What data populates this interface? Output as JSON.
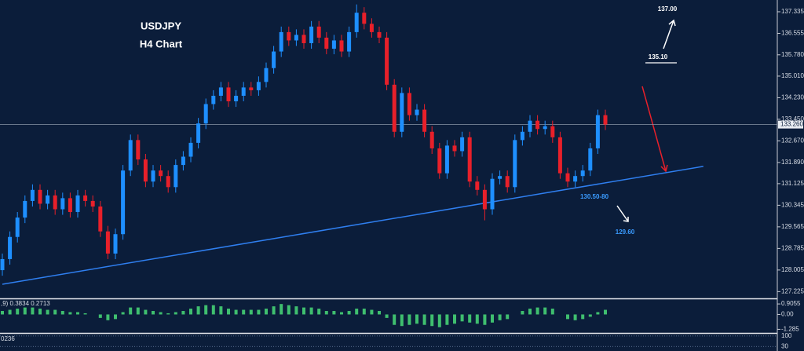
{
  "chart_data": {
    "type": "candlestick",
    "title": "USDJPY",
    "subtitle": "H4 Chart",
    "open": [
      128.0,
      128.4,
      129.2,
      129.9,
      130.5,
      130.9,
      130.4,
      130.7,
      130.2,
      130.6,
      130.1,
      130.7,
      130.5,
      130.3,
      129.4,
      128.6,
      129.3,
      131.6,
      132.7,
      132.0,
      131.2,
      131.6,
      131.4,
      131.0,
      131.8,
      132.1,
      132.6,
      133.3,
      134.0,
      134.3,
      134.6,
      134.1,
      134.3,
      134.6,
      134.5,
      134.8,
      135.3,
      135.9,
      136.6,
      136.3,
      136.5,
      136.2,
      136.8,
      136.4,
      136.0,
      136.3,
      135.9,
      136.6,
      137.3,
      136.9,
      136.6,
      136.4,
      134.7,
      133.0,
      134.4,
      133.6,
      133.8,
      133.0,
      132.4,
      131.5,
      132.5,
      132.3,
      132.8,
      131.2,
      130.9,
      130.2,
      131.3,
      131.4,
      131.0,
      132.7,
      133.0,
      133.4,
      133.1,
      133.2,
      132.8,
      131.5,
      131.2,
      131.4,
      131.6,
      132.4,
      133.6
    ],
    "high": [
      128.6,
      129.4,
      130.1,
      130.7,
      131.1,
      131.1,
      130.9,
      130.9,
      130.8,
      130.8,
      130.9,
      130.9,
      130.7,
      130.5,
      129.6,
      129.5,
      131.8,
      132.9,
      132.9,
      132.2,
      131.8,
      131.8,
      131.6,
      132.0,
      132.3,
      132.8,
      133.5,
      134.2,
      134.5,
      134.8,
      134.8,
      134.5,
      134.8,
      134.8,
      135.0,
      135.5,
      136.1,
      136.8,
      136.8,
      136.7,
      136.7,
      137.0,
      137.0,
      136.6,
      136.5,
      136.5,
      136.8,
      137.6,
      137.5,
      137.1,
      136.8,
      136.6,
      134.9,
      134.6,
      134.6,
      134.0,
      134.0,
      133.2,
      132.6,
      132.7,
      132.7,
      133.0,
      133.0,
      131.4,
      131.1,
      131.5,
      131.6,
      131.6,
      132.9,
      133.2,
      133.6,
      133.6,
      133.4,
      133.4,
      133.0,
      131.7,
      131.6,
      131.8,
      132.6,
      133.8,
      133.8
    ],
    "low": [
      127.8,
      128.2,
      129.0,
      129.7,
      130.3,
      130.2,
      130.2,
      130.0,
      130.0,
      129.9,
      129.9,
      130.3,
      130.1,
      129.2,
      128.4,
      128.4,
      129.1,
      131.4,
      131.8,
      131.0,
      131.0,
      131.2,
      130.8,
      130.8,
      131.6,
      131.9,
      132.4,
      133.1,
      133.8,
      134.1,
      133.9,
      133.9,
      134.1,
      134.3,
      134.3,
      134.6,
      135.1,
      135.7,
      136.1,
      136.1,
      136.0,
      136.0,
      136.2,
      135.8,
      135.8,
      135.7,
      135.7,
      136.4,
      136.7,
      136.4,
      136.2,
      134.5,
      132.8,
      132.8,
      133.4,
      133.4,
      132.8,
      132.2,
      131.3,
      131.3,
      132.1,
      132.1,
      131.0,
      130.7,
      129.8,
      130.0,
      131.1,
      130.8,
      130.8,
      132.5,
      132.8,
      132.9,
      132.9,
      132.6,
      131.3,
      131.0,
      131.0,
      131.2,
      131.4,
      132.2,
      133.06
    ],
    "close": [
      128.4,
      129.2,
      129.9,
      130.5,
      130.9,
      130.4,
      130.7,
      130.2,
      130.6,
      130.1,
      130.7,
      130.5,
      130.3,
      129.4,
      128.6,
      129.3,
      131.6,
      132.7,
      132.0,
      131.2,
      131.6,
      131.4,
      131.0,
      131.8,
      132.1,
      132.6,
      133.3,
      134.0,
      134.3,
      134.6,
      134.1,
      134.3,
      134.6,
      134.5,
      134.8,
      135.3,
      135.9,
      136.6,
      136.3,
      136.5,
      136.2,
      136.8,
      136.4,
      136.0,
      136.3,
      135.9,
      136.6,
      137.3,
      136.9,
      136.6,
      136.4,
      134.7,
      133.0,
      134.4,
      133.6,
      133.8,
      133.0,
      132.4,
      131.5,
      132.5,
      132.3,
      132.8,
      131.2,
      130.9,
      130.2,
      131.3,
      131.4,
      131.0,
      132.7,
      133.0,
      133.4,
      133.1,
      133.2,
      132.8,
      131.5,
      131.2,
      131.4,
      131.6,
      132.4,
      133.6,
      133.26
    ],
    "up_color": "#1e8fff",
    "down_color": "#e8202a",
    "ylim": [
      126.98,
      137.76
    ],
    "yticks": [
      137.335,
      136.555,
      {
        "value": 135.78,
        "label": "135.780"
      },
      {
        "value": 135.01,
        "label": "135.010"
      },
      {
        "value": 134.23,
        "label": "134.230"
      },
      {
        "value": 133.45,
        "label": "133.450"
      },
      {
        "value": 132.67,
        "label": "132.670"
      },
      {
        "value": 131.89,
        "label": "131.890"
      },
      131.125,
      130.345,
      129.565,
      128.785,
      128.005,
      127.225
    ],
    "current_price": {
      "value": 133.26,
      "label": "133.260"
    },
    "trendline": {
      "x": [
        0,
        93
      ],
      "y": [
        127.49,
        131.75
      ],
      "color": "#2f7ff0"
    },
    "annotations": [
      "137.00",
      "135.10",
      "130.50-80",
      "129.60"
    ],
    "macd": {
      "label": ",9) 0.3834 0.2713",
      "color": "#3fbf6f",
      "values": [
        0.3,
        0.4,
        0.5,
        0.6,
        0.6,
        0.5,
        0.4,
        0.4,
        0.3,
        0.2,
        0.2,
        0.1,
        0.0,
        -0.3,
        -0.5,
        -0.4,
        0.2,
        0.6,
        0.6,
        0.4,
        0.3,
        0.2,
        0.1,
        0.2,
        0.3,
        0.5,
        0.7,
        0.8,
        0.8,
        0.7,
        0.5,
        0.4,
        0.4,
        0.4,
        0.4,
        0.5,
        0.7,
        0.9,
        0.8,
        0.7,
        0.6,
        0.6,
        0.5,
        0.3,
        0.3,
        0.2,
        0.3,
        0.5,
        0.5,
        0.4,
        0.3,
        -0.3,
        -0.9,
        -1.0,
        -0.9,
        -0.8,
        -0.9,
        -1.0,
        -1.1,
        -0.9,
        -0.8,
        -0.6,
        -0.7,
        -0.8,
        -0.9,
        -0.7,
        -0.5,
        -0.4,
        0.0,
        0.3,
        0.5,
        0.6,
        0.6,
        0.5,
        0.0,
        -0.4,
        -0.5,
        -0.4,
        -0.2,
        0.2,
        0.4
      ],
      "ylim": [
        -1.46,
        1.25
      ],
      "yticks": [
        0.9055,
        {
          "value": 0,
          "label": "0.00"
        },
        -1.285
      ]
    },
    "oscillator": {
      "label": "0236",
      "ylim": [
        0,
        110
      ],
      "yticks": [
        100,
        30
      ]
    }
  }
}
